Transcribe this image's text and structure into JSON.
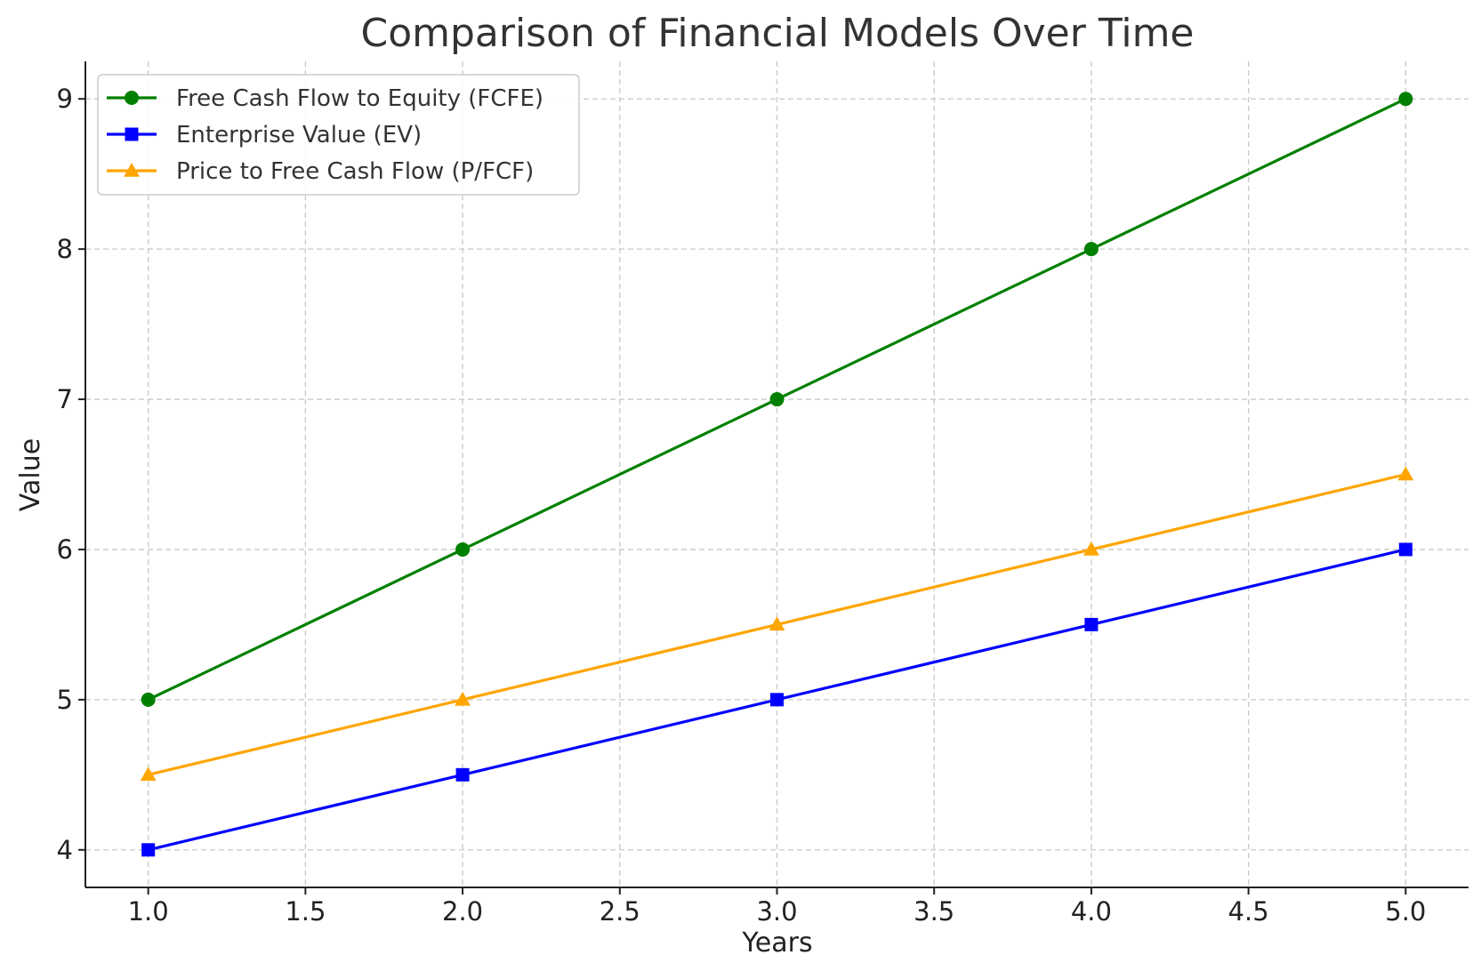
{
  "chart_data": {
    "type": "line",
    "title": "Comparison of Financial Models Over Time",
    "xlabel": "Years",
    "ylabel": "Value",
    "x": [
      1,
      2,
      3,
      4,
      5
    ],
    "xlim": [
      0.8,
      5.2
    ],
    "ylim": [
      3.75,
      9.25
    ],
    "xticks": [
      "1.0",
      "1.5",
      "2.0",
      "2.5",
      "3.0",
      "3.5",
      "4.0",
      "4.5",
      "5.0"
    ],
    "yticks": [
      "4",
      "5",
      "6",
      "7",
      "8",
      "9"
    ],
    "grid": true,
    "legend_position": "top-left",
    "series": [
      {
        "name": "Free Cash Flow to Equity (FCFE)",
        "values": [
          5,
          6,
          7,
          8,
          9
        ],
        "color": "#008000",
        "marker": "circle"
      },
      {
        "name": "Enterprise Value (EV)",
        "values": [
          4,
          4.5,
          5,
          5.5,
          6
        ],
        "color": "#0000ff",
        "marker": "square"
      },
      {
        "name": "Price to Free Cash Flow (P/FCF)",
        "values": [
          4.5,
          5,
          5.5,
          6,
          6.5
        ],
        "color": "#ffa500",
        "marker": "triangle"
      }
    ]
  }
}
